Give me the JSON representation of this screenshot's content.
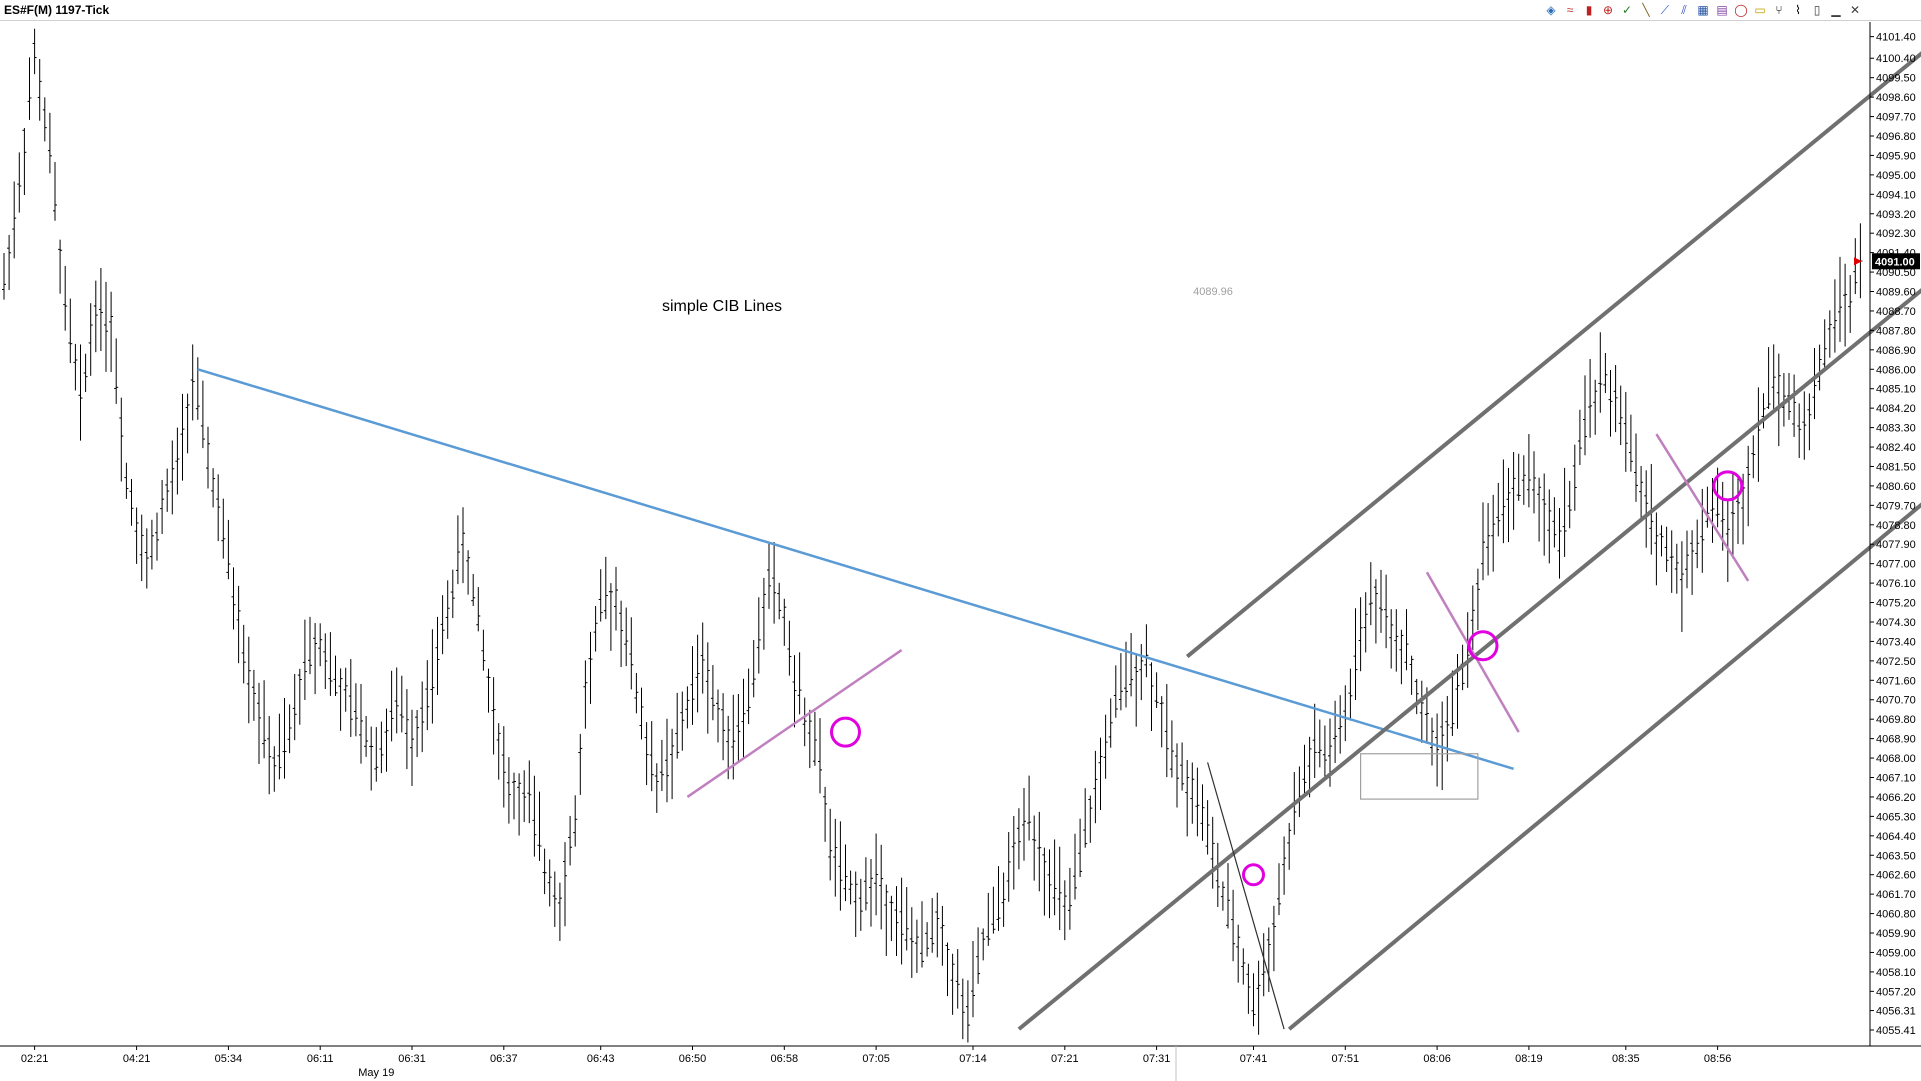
{
  "window": {
    "title": "ES#F(M)  1197-Tick"
  },
  "toolbar": {
    "icons": [
      {
        "name": "chart-style-icon",
        "glyph": "◈",
        "color": "#2a6db5"
      },
      {
        "name": "bollinger-icon",
        "glyph": "≈",
        "color": "#c03030"
      },
      {
        "name": "candles-icon",
        "glyph": "▮",
        "color": "#c02020"
      },
      {
        "name": "cursor-icon",
        "glyph": "⊕",
        "color": "#c02020"
      },
      {
        "name": "check-icon",
        "glyph": "✓",
        "color": "#208020"
      },
      {
        "name": "line-tool-icon",
        "glyph": "╲",
        "color": "#806020"
      },
      {
        "name": "ray-tool-icon",
        "glyph": "⟋",
        "color": "#3050c0"
      },
      {
        "name": "channel-tool-icon",
        "glyph": "⫽",
        "color": "#3050c0"
      },
      {
        "name": "grid-icon",
        "glyph": "▦",
        "color": "#2050a0"
      },
      {
        "name": "fib-icon",
        "glyph": "▤",
        "color": "#8040a0"
      },
      {
        "name": "circle-icon",
        "glyph": "◯",
        "color": "#c02020"
      },
      {
        "name": "text-tool-icon",
        "glyph": "▭",
        "color": "#c0a000"
      },
      {
        "name": "pitchfork-icon",
        "glyph": "⑂",
        "color": "#000000"
      },
      {
        "name": "zigzag-icon",
        "glyph": "⌇",
        "color": "#000000"
      },
      {
        "name": "marker-icon",
        "glyph": "▯",
        "color": "#404040"
      },
      {
        "name": "minimize-icon",
        "glyph": "▁",
        "color": "#404040"
      },
      {
        "name": "close-icon",
        "glyph": "✕",
        "color": "#404040"
      }
    ]
  },
  "chart_data": {
    "type": "ohlc",
    "symbol": "ES#F(M)",
    "interval": "1197-Tick",
    "last_price": "4091.00",
    "hover_price": "4089.96",
    "annotation_text": "simple CIB Lines",
    "ylim": [
      4055.41,
      4101.8
    ],
    "y_ticks": [
      "4101.40",
      "4100.40",
      "4099.50",
      "4098.60",
      "4097.70",
      "4096.80",
      "4095.90",
      "4095.00",
      "4094.10",
      "4093.20",
      "4092.30",
      "4091.40",
      "4090.50",
      "4089.60",
      "4088.70",
      "4087.80",
      "4086.90",
      "4086.00",
      "4085.10",
      "4084.20",
      "4083.30",
      "4082.40",
      "4081.50",
      "4080.60",
      "4079.70",
      "4078.80",
      "4077.90",
      "4077.00",
      "4076.10",
      "4075.20",
      "4074.30",
      "4073.40",
      "4072.50",
      "4071.60",
      "4070.70",
      "4069.80",
      "4068.90",
      "4068.00",
      "4067.10",
      "4066.20",
      "4065.30",
      "4064.40",
      "4063.50",
      "4062.60",
      "4061.70",
      "4060.80",
      "4059.90",
      "4059.00",
      "4058.10",
      "4057.20",
      "4056.31",
      "4055.41"
    ],
    "y_tick_marks": [
      4101.4,
      4100.4,
      4099.5,
      4098.6,
      4097.7,
      4096.8,
      4095.9,
      4095.0,
      4094.1,
      4093.2,
      4092.3,
      4091.4,
      4090.5,
      4089.6,
      4088.7,
      4087.8,
      4086.9,
      4086.0,
      4085.1,
      4084.2,
      4083.3,
      4082.4,
      4081.5,
      4080.6,
      4079.7,
      4078.8,
      4077.9,
      4077.0,
      4076.1,
      4075.2,
      4074.3,
      4073.4,
      4072.5,
      4071.6,
      4070.7,
      4069.8,
      4068.9,
      4068.0,
      4067.1,
      4066.2,
      4065.3,
      4064.4,
      4063.5,
      4062.6,
      4061.7,
      4060.8,
      4059.9,
      4059.0,
      4058.1,
      4057.2,
      4056.31,
      4055.41
    ],
    "x_ticks": [
      {
        "label": "02:21",
        "bar": 6
      },
      {
        "label": "04:21",
        "bar": 26
      },
      {
        "label": "05:34",
        "bar": 44
      },
      {
        "label": "06:11",
        "bar": 62
      },
      {
        "label": "06:31",
        "bar": 80
      },
      {
        "label": "06:37",
        "bar": 98
      },
      {
        "label": "06:43",
        "bar": 117
      },
      {
        "label": "06:50",
        "bar": 135
      },
      {
        "label": "06:58",
        "bar": 153
      },
      {
        "label": "07:05",
        "bar": 171
      },
      {
        "label": "07:14",
        "bar": 190
      },
      {
        "label": "07:21",
        "bar": 208
      },
      {
        "label": "07:31",
        "bar": 226
      },
      {
        "label": "07:41",
        "bar": 245
      },
      {
        "label": "07:51",
        "bar": 263
      },
      {
        "label": "08:06",
        "bar": 281
      },
      {
        "label": "08:19",
        "bar": 299
      },
      {
        "label": "08:35",
        "bar": 318
      },
      {
        "label": "08:56",
        "bar": 336
      }
    ],
    "date_label": "May 19",
    "date_label_bar": 73,
    "price_path": [
      [
        0,
        4090.0
      ],
      [
        3,
        4094.5
      ],
      [
        6,
        4100.5
      ],
      [
        9,
        4096.0
      ],
      [
        12,
        4089.0
      ],
      [
        15,
        4084.5
      ],
      [
        18,
        4089.0
      ],
      [
        21,
        4088.0
      ],
      [
        24,
        4081.0
      ],
      [
        28,
        4077.0
      ],
      [
        31,
        4079.5
      ],
      [
        34,
        4081.5
      ],
      [
        37,
        4085.5
      ],
      [
        40,
        4082.0
      ],
      [
        44,
        4077.0
      ],
      [
        47,
        4073.0
      ],
      [
        50,
        4070.0
      ],
      [
        53,
        4067.5
      ],
      [
        56,
        4069.0
      ],
      [
        59,
        4072.5
      ],
      [
        62,
        4073.5
      ],
      [
        65,
        4071.5
      ],
      [
        69,
        4070.0
      ],
      [
        73,
        4068.0
      ],
      [
        77,
        4070.5
      ],
      [
        80,
        4069.0
      ],
      [
        84,
        4071.5
      ],
      [
        87,
        4075.0
      ],
      [
        90,
        4078.0
      ],
      [
        93,
        4074.5
      ],
      [
        96,
        4070.0
      ],
      [
        99,
        4066.5
      ],
      [
        103,
        4066.0
      ],
      [
        106,
        4063.0
      ],
      [
        109,
        4061.5
      ],
      [
        112,
        4065.0
      ],
      [
        114,
        4071.0
      ],
      [
        117,
        4075.0
      ],
      [
        120,
        4075.5
      ],
      [
        123,
        4072.5
      ],
      [
        126,
        4068.5
      ],
      [
        128,
        4067.0
      ],
      [
        131,
        4068.0
      ],
      [
        134,
        4070.5
      ],
      [
        137,
        4072.5
      ],
      [
        140,
        4070.0
      ],
      [
        143,
        4069.0
      ],
      [
        146,
        4070.5
      ],
      [
        148,
        4073.5
      ],
      [
        150,
        4076.5
      ],
      [
        153,
        4074.5
      ],
      [
        155,
        4071.5
      ],
      [
        157,
        4070.0
      ],
      [
        160,
        4067.5
      ],
      [
        162,
        4064.0
      ],
      [
        165,
        4062.0
      ],
      [
        168,
        4061.5
      ],
      [
        171,
        4062.5
      ],
      [
        174,
        4061.0
      ],
      [
        177,
        4060.0
      ],
      [
        180,
        4059.0
      ],
      [
        183,
        4060.5
      ],
      [
        186,
        4058.0
      ],
      [
        189,
        4056.0
      ],
      [
        192,
        4059.5
      ],
      [
        195,
        4061.0
      ],
      [
        198,
        4063.5
      ],
      [
        201,
        4065.5
      ],
      [
        204,
        4063.0
      ],
      [
        207,
        4061.5
      ],
      [
        209,
        4061.0
      ],
      [
        212,
        4064.5
      ],
      [
        215,
        4067.5
      ],
      [
        218,
        4070.5
      ],
      [
        221,
        4072.0
      ],
      [
        224,
        4072.5
      ],
      [
        226,
        4071.0
      ],
      [
        229,
        4068.0
      ],
      [
        232,
        4067.0
      ],
      [
        235,
        4065.5
      ],
      [
        238,
        4062.5
      ],
      [
        241,
        4060.0
      ],
      [
        243,
        4058.5
      ],
      [
        245,
        4056.5
      ],
      [
        248,
        4059.0
      ],
      [
        251,
        4063.0
      ],
      [
        254,
        4066.5
      ],
      [
        257,
        4068.5
      ],
      [
        260,
        4068.0
      ],
      [
        263,
        4070.0
      ],
      [
        266,
        4074.0
      ],
      [
        269,
        4075.5
      ],
      [
        272,
        4074.0
      ],
      [
        275,
        4073.0
      ],
      [
        278,
        4070.0
      ],
      [
        281,
        4068.5
      ],
      [
        284,
        4070.0
      ],
      [
        287,
        4073.0
      ],
      [
        290,
        4077.5
      ],
      [
        293,
        4079.5
      ],
      [
        296,
        4080.5
      ],
      [
        299,
        4081.0
      ],
      [
        302,
        4079.5
      ],
      [
        305,
        4078.0
      ],
      [
        308,
        4081.0
      ],
      [
        311,
        4084.5
      ],
      [
        314,
        4085.5
      ],
      [
        317,
        4084.0
      ],
      [
        320,
        4081.0
      ],
      [
        323,
        4079.0
      ],
      [
        326,
        4077.5
      ],
      [
        329,
        4076.5
      ],
      [
        332,
        4078.0
      ],
      [
        335,
        4080.0
      ],
      [
        338,
        4078.5
      ],
      [
        341,
        4080.0
      ],
      [
        344,
        4083.5
      ],
      [
        347,
        4085.5
      ],
      [
        350,
        4084.5
      ],
      [
        353,
        4083.0
      ],
      [
        356,
        4086.0
      ],
      [
        359,
        4088.5
      ],
      [
        362,
        4089.5
      ],
      [
        364,
        4091.0
      ]
    ],
    "drawings": {
      "blue_trendline": {
        "from": [
          38,
          4086.0
        ],
        "to": [
          296,
          4067.5
        ],
        "color": "#5b9bd5"
      },
      "channel_lower": {
        "from": [
          199,
          4055.45
        ],
        "to": [
          385,
          4091.4
        ],
        "color": "#707070"
      },
      "channel_upper": {
        "from": [
          232,
          4072.7
        ],
        "to": [
          380,
          4101.4
        ],
        "color": "#707070"
      },
      "channel_bottom": {
        "from": [
          252,
          4055.45
        ],
        "to": [
          385,
          4081.5
        ],
        "color": "#707070"
      },
      "thin_diagonal": {
        "from": [
          236,
          4067.8
        ],
        "to": [
          251,
          4055.45
        ],
        "color": "#303030"
      },
      "magenta_line_1": {
        "from": [
          134,
          4066.2
        ],
        "to": [
          176,
          4073.0
        ],
        "color": "#c080c0"
      },
      "magenta_line_2": {
        "from": [
          279,
          4076.6
        ],
        "to": [
          297,
          4069.2
        ],
        "color": "#c080c0"
      },
      "magenta_line_3": {
        "from": [
          324,
          4083.0
        ],
        "to": [
          342,
          4076.2
        ],
        "color": "#c080c0"
      },
      "gray_box": {
        "x0": 266,
        "x1": 289,
        "top": 4068.2,
        "bottom": 4066.1,
        "color": "#a0a0a0"
      },
      "circles": [
        {
          "bar": 165,
          "price": 4069.2,
          "color": "#e000e0"
        },
        {
          "bar": 245,
          "price": 4062.6,
          "color": "#e000e0"
        },
        {
          "bar": 290,
          "price": 4073.2,
          "color": "#e000e0"
        },
        {
          "bar": 338,
          "price": 4080.6,
          "color": "#e000e0"
        }
      ]
    }
  }
}
